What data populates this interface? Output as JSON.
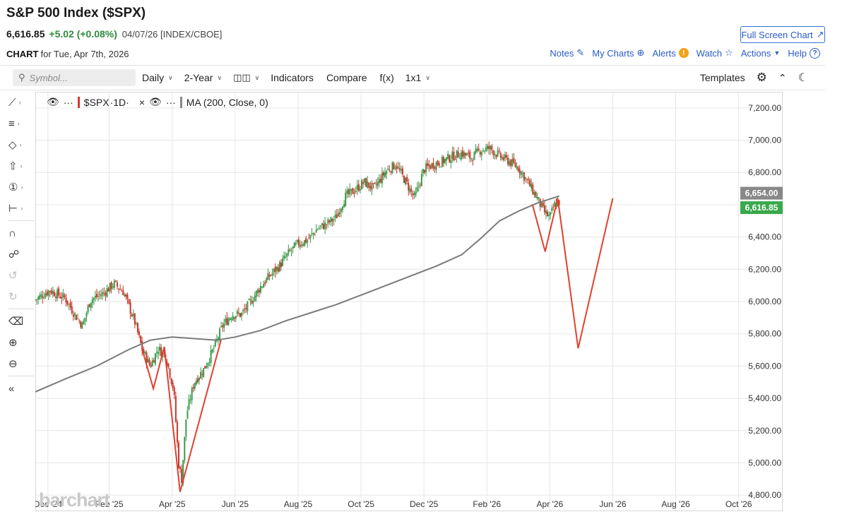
{
  "header": {
    "title": "S&P 500 Index ($SPX)",
    "last": "6,616.85",
    "change": "+5.02 (+0.08%)",
    "meta": "04/07/26 [INDEX/CBOE]",
    "fullscreen_label": "Full Screen Chart",
    "chart_label": "CHART",
    "chart_date": "for Tue, Apr 7th, 2026"
  },
  "links": {
    "notes": "Notes",
    "mycharts": "My Charts",
    "alerts": "Alerts",
    "alerts_badge": "!",
    "watch": "Watch",
    "actions": "Actions",
    "help": "Help"
  },
  "toolbar": {
    "symbol_placeholder": "Symbol...",
    "period": "Daily",
    "range": "2-Year",
    "indicators": "Indicators",
    "compare": "Compare",
    "fx": "f(x)",
    "layout": "1x1",
    "templates": "Templates"
  },
  "legend": {
    "symbol": "$SPX",
    "interval": "·1D·",
    "dots": "···",
    "ma": "MA (200, Close, 0)"
  },
  "watermark": "barchart",
  "colors": {
    "up": "#3a9a4a",
    "down": "#c9362b",
    "ma": "#7a7a7a",
    "annotation": "#e0412e",
    "last_badge": "#3aa84c",
    "accent": "#2a5bc7"
  },
  "chart_data": {
    "type": "candlestick",
    "ylim": [
      4700,
      7300
    ],
    "y_ticks": [
      4800,
      5000,
      5200,
      5400,
      5600,
      5800,
      6000,
      6200,
      6400,
      6600,
      6800,
      7000,
      7200
    ],
    "y_tick_labels": [
      "4,800.00",
      "5,000.00",
      "5,200.00",
      "5,400.00",
      "5,600.00",
      "5,800.00",
      "6,000.00",
      "6,200.00",
      "6,400.00",
      "6,600.00",
      "6,800.00",
      "7,000.00",
      "7,200.00"
    ],
    "x_labels": [
      {
        "label": "Dec '24",
        "t": 0.05
      },
      {
        "label": "Feb '25",
        "t": 2.0
      },
      {
        "label": "Apr '25",
        "t": 4.0
      },
      {
        "label": "Jun '25",
        "t": 6.0
      },
      {
        "label": "Aug '25",
        "t": 8.0
      },
      {
        "label": "Oct '25",
        "t": 10.0
      },
      {
        "label": "Dec '25",
        "t": 12.0
      },
      {
        "label": "Feb '26",
        "t": 14.0
      },
      {
        "label": "Apr '26",
        "t": 16.0
      },
      {
        "label": "Jun '26",
        "t": 18.0
      },
      {
        "label": "Aug '26",
        "t": 20.0
      },
      {
        "label": "Oct '26",
        "t": 22.0
      }
    ],
    "x_range": [
      -0.35,
      23.4
    ],
    "price_path": [
      [
        -0.35,
        6010
      ],
      [
        0.1,
        6070
      ],
      [
        0.6,
        6020
      ],
      [
        0.9,
        5920
      ],
      [
        1.15,
        5850
      ],
      [
        1.4,
        6010
      ],
      [
        1.8,
        6050
      ],
      [
        2.15,
        6110
      ],
      [
        2.45,
        6060
      ],
      [
        2.8,
        5880
      ],
      [
        3.05,
        5700
      ],
      [
        3.3,
        5600
      ],
      [
        3.55,
        5710
      ],
      [
        3.8,
        5660
      ],
      [
        4.05,
        5450
      ],
      [
        4.2,
        5000
      ],
      [
        4.3,
        4900
      ],
      [
        4.45,
        5300
      ],
      [
        4.7,
        5500
      ],
      [
        5.0,
        5580
      ],
      [
        5.3,
        5700
      ],
      [
        5.6,
        5850
      ],
      [
        5.9,
        5920
      ],
      [
        6.2,
        5920
      ],
      [
        6.5,
        6000
      ],
      [
        6.8,
        6090
      ],
      [
        7.1,
        6160
      ],
      [
        7.4,
        6220
      ],
      [
        7.7,
        6300
      ],
      [
        8.0,
        6360
      ],
      [
        8.3,
        6380
      ],
      [
        8.6,
        6450
      ],
      [
        8.9,
        6480
      ],
      [
        9.2,
        6520
      ],
      [
        9.5,
        6650
      ],
      [
        9.8,
        6690
      ],
      [
        10.1,
        6740
      ],
      [
        10.4,
        6700
      ],
      [
        10.8,
        6810
      ],
      [
        11.1,
        6850
      ],
      [
        11.4,
        6750
      ],
      [
        11.7,
        6640
      ],
      [
        12.0,
        6820
      ],
      [
        12.3,
        6850
      ],
      [
        12.6,
        6870
      ],
      [
        12.9,
        6900
      ],
      [
        13.2,
        6920
      ],
      [
        13.5,
        6890
      ],
      [
        13.8,
        6940
      ],
      [
        14.1,
        6950
      ],
      [
        14.4,
        6900
      ],
      [
        14.7,
        6870
      ],
      [
        15.0,
        6830
      ],
      [
        15.3,
        6740
      ],
      [
        15.6,
        6640
      ],
      [
        15.8,
        6560
      ],
      [
        16.0,
        6520
      ],
      [
        16.15,
        6600
      ],
      [
        16.3,
        6616
      ]
    ],
    "ma_path": [
      [
        -0.35,
        5440
      ],
      [
        0.6,
        5520
      ],
      [
        1.6,
        5600
      ],
      [
        2.6,
        5700
      ],
      [
        3.3,
        5760
      ],
      [
        4.0,
        5780
      ],
      [
        4.7,
        5770
      ],
      [
        5.4,
        5760
      ],
      [
        6.0,
        5780
      ],
      [
        6.8,
        5820
      ],
      [
        7.6,
        5880
      ],
      [
        8.4,
        5930
      ],
      [
        9.2,
        5980
      ],
      [
        10.0,
        6040
      ],
      [
        10.8,
        6100
      ],
      [
        11.6,
        6160
      ],
      [
        12.4,
        6220
      ],
      [
        13.2,
        6290
      ],
      [
        13.8,
        6390
      ],
      [
        14.4,
        6500
      ],
      [
        15.0,
        6560
      ],
      [
        15.6,
        6610
      ],
      [
        16.3,
        6654
      ]
    ],
    "annotation_lines": [
      [
        [
          3.05,
          5700
        ],
        [
          3.4,
          5460
        ],
        [
          3.75,
          5720
        ]
      ],
      [
        [
          3.75,
          5720
        ],
        [
          4.25,
          4820
        ],
        [
          5.55,
          5760
        ]
      ],
      [
        [
          15.45,
          6600
        ],
        [
          15.85,
          6310
        ],
        [
          16.25,
          6640
        ]
      ],
      [
        [
          16.25,
          6640
        ],
        [
          16.9,
          5710
        ],
        [
          18.0,
          6640
        ]
      ]
    ],
    "price_badges": [
      {
        "value": 6654.0,
        "label": "6,654.00",
        "color": "#888888"
      },
      {
        "value": 6616.85,
        "label": "6,616.85",
        "color": "#3aa84c"
      }
    ]
  }
}
